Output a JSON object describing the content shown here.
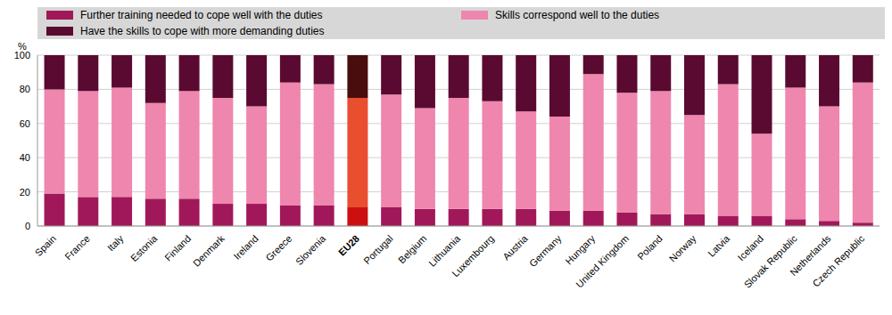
{
  "chart_data": {
    "type": "bar",
    "stacked": true,
    "y_label": "%",
    "legend": "top",
    "grid": true,
    "ylim": [
      0,
      100
    ],
    "yticks": [
      0,
      20,
      40,
      60,
      80,
      100
    ],
    "categories": [
      "Spain",
      "France",
      "Italy",
      "Estonia",
      "Finland",
      "Denmark",
      "Ireland",
      "Greece",
      "Slovenia",
      "EU28",
      "Portugal",
      "Belgium",
      "Lithuania",
      "Luxembourg",
      "Austria",
      "Germany",
      "Hungary",
      "United Kingdom",
      "Poland",
      "Norway",
      "Latvia",
      "Iceland",
      "Slovak Republic",
      "Netherlands",
      "Czech Republic"
    ],
    "series": [
      {
        "name": "Further training needed to cope well with the duties",
        "color": "#a1185a",
        "colors": [
          "#a1185a",
          "#a1185a",
          "#a1185a",
          "#a1185a",
          "#a1185a",
          "#a1185a",
          "#a1185a",
          "#a1185a",
          "#a1185a",
          "#cc1010",
          "#a1185a",
          "#a1185a",
          "#a1185a",
          "#a1185a",
          "#a1185a",
          "#a1185a",
          "#a1185a",
          "#a1185a",
          "#a1185a",
          "#a1185a",
          "#a1185a",
          "#a1185a",
          "#a1185a",
          "#a1185a",
          "#a1185a"
        ],
        "values": [
          19,
          17,
          17,
          16,
          16,
          13,
          13,
          12,
          12,
          11,
          11,
          10,
          10,
          10,
          10,
          9,
          9,
          8,
          7,
          7,
          6,
          6,
          4,
          3,
          2
        ]
      },
      {
        "name": "Skills correspond well to the duties",
        "color": "#ef86ae",
        "colors": [
          "#ef86ae",
          "#ef86ae",
          "#ef86ae",
          "#ef86ae",
          "#ef86ae",
          "#ef86ae",
          "#ef86ae",
          "#ef86ae",
          "#ef86ae",
          "#e94e2f",
          "#ef86ae",
          "#ef86ae",
          "#ef86ae",
          "#ef86ae",
          "#ef86ae",
          "#ef86ae",
          "#ef86ae",
          "#ef86ae",
          "#ef86ae",
          "#ef86ae",
          "#ef86ae",
          "#ef86ae",
          "#ef86ae",
          "#ef86ae",
          "#ef86ae"
        ],
        "values": [
          61,
          62,
          64,
          56,
          63,
          62,
          57,
          72,
          71,
          64,
          66,
          59,
          65,
          63,
          57,
          55,
          80,
          70,
          72,
          58,
          77,
          48,
          77,
          67,
          82
        ]
      },
      {
        "name": "Have the skills to cope with more demanding duties",
        "color": "#5a0a30",
        "colors": [
          "#5a0a30",
          "#5a0a30",
          "#5a0a30",
          "#5a0a30",
          "#5a0a30",
          "#5a0a30",
          "#5a0a30",
          "#5a0a30",
          "#5a0a30",
          "#4a0d0d",
          "#5a0a30",
          "#5a0a30",
          "#5a0a30",
          "#5a0a30",
          "#5a0a30",
          "#5a0a30",
          "#5a0a30",
          "#5a0a30",
          "#5a0a30",
          "#5a0a30",
          "#5a0a30",
          "#5a0a30",
          "#5a0a30",
          "#5a0a30",
          "#5a0a30"
        ],
        "values": [
          20,
          21,
          19,
          28,
          21,
          25,
          30,
          16,
          17,
          25,
          23,
          31,
          25,
          27,
          33,
          36,
          11,
          22,
          21,
          35,
          17,
          46,
          19,
          30,
          16
        ]
      }
    ]
  }
}
